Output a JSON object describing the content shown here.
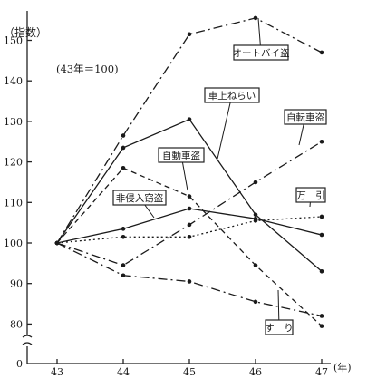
{
  "chart_data": {
    "type": "line",
    "ylabel": "（指数）",
    "xunit": "(年)",
    "base_note": "(43年＝100)",
    "x": [
      "43",
      "44",
      "45",
      "46",
      "47"
    ],
    "ylim": [
      80,
      155
    ],
    "yticks": [
      "80",
      "90",
      "100",
      "110",
      "120",
      "130",
      "140",
      "150"
    ],
    "y_zero_label": "0",
    "series": [
      {
        "name": "オートバイ盗",
        "style": "dashdot",
        "values": [
          100,
          126.5,
          151.5,
          155.5,
          147
        ]
      },
      {
        "name": "車上ねらい",
        "style": "solid",
        "values": [
          100,
          123.5,
          130.5,
          107,
          93
        ]
      },
      {
        "name": "自転車盗",
        "style": "dashdot",
        "values": [
          100,
          94.5,
          104.5,
          115,
          125
        ]
      },
      {
        "name": "自動車盗",
        "style": "dashed",
        "values": [
          100,
          118.5,
          111.5,
          94.5,
          79.5
        ]
      },
      {
        "name": "非侵入窃盗",
        "style": "solid",
        "values": [
          100,
          103.5,
          108.5,
          106,
          102
        ]
      },
      {
        "name": "万　引",
        "style": "dotted",
        "values": [
          100,
          101.5,
          101.5,
          105.5,
          106.5
        ]
      },
      {
        "name": "す　り",
        "style": "dashdot",
        "values": [
          100,
          92,
          90.5,
          85.5,
          82
        ]
      }
    ]
  }
}
